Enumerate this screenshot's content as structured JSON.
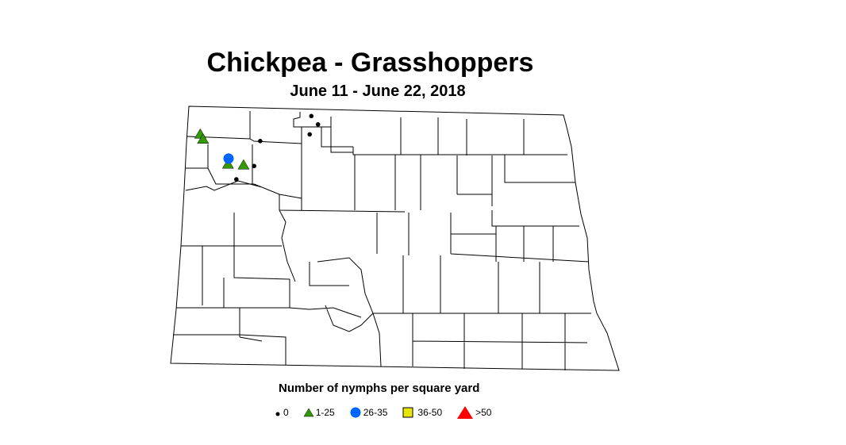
{
  "title": "Chickpea - Grasshoppers",
  "subtitle": "June 11 - June 22, 2018",
  "legend": {
    "title": "Number of nymphs per square yard",
    "items": [
      {
        "label": "0",
        "shape": "dot",
        "color": "#000000"
      },
      {
        "label": "1-25",
        "shape": "triangle",
        "color": "#339900"
      },
      {
        "label": "26-35",
        "shape": "circle",
        "color": "#0066ff"
      },
      {
        "label": "36-50",
        "shape": "square",
        "color": "#e6e600"
      },
      {
        "label": ">50",
        "shape": "triangle",
        "color": "#ff0000"
      }
    ]
  },
  "observations": [
    {
      "lon": -103.76,
      "lat": 48.72,
      "class": "1-25"
    },
    {
      "lon": -103.71,
      "lat": 48.66,
      "class": "1-25"
    },
    {
      "lon": -103.26,
      "lat": 48.36,
      "class": "1-25"
    },
    {
      "lon": -102.98,
      "lat": 48.35,
      "class": "1-25"
    },
    {
      "lon": -103.25,
      "lat": 48.43,
      "class": "26-35"
    },
    {
      "lon": -101.76,
      "lat": 48.94,
      "class": "0"
    },
    {
      "lon": -101.64,
      "lat": 48.84,
      "class": "0"
    },
    {
      "lon": -101.79,
      "lat": 48.72,
      "class": "0"
    },
    {
      "lon": -102.68,
      "lat": 48.64,
      "class": "0"
    },
    {
      "lon": -102.79,
      "lat": 48.34,
      "class": "0"
    },
    {
      "lon": -103.11,
      "lat": 48.18,
      "class": "0"
    }
  ]
}
